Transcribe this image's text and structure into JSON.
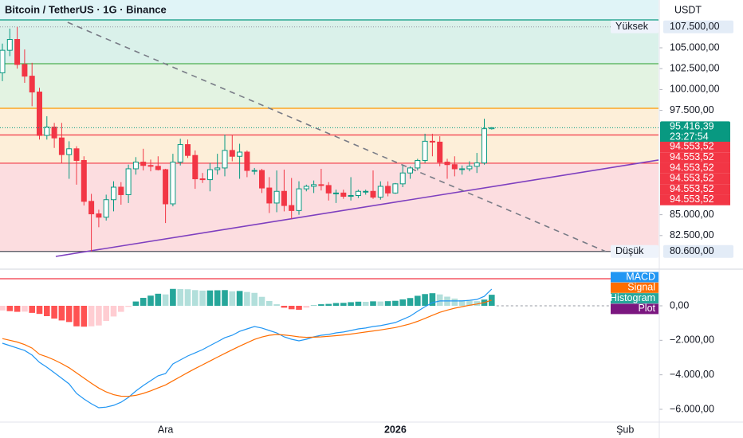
{
  "header": {
    "title": "Bitcoin / TetherUS · 1G · Binance",
    "currency": "USDT"
  },
  "chart_data": {
    "type": "candlestick",
    "categories": [
      null,
      null,
      null,
      null,
      null,
      null,
      null,
      null,
      null,
      null,
      null,
      null,
      null,
      null,
      null,
      null,
      null,
      null,
      null,
      null,
      null,
      null,
      "Ara",
      null,
      null,
      null,
      null,
      null,
      null,
      null,
      null,
      null,
      null,
      null,
      null,
      null,
      null,
      null,
      null,
      null,
      null,
      null,
      null,
      null,
      null,
      null,
      null,
      null,
      null,
      null,
      null,
      null,
      null,
      "2026",
      null,
      null,
      null,
      null,
      null,
      null,
      null,
      null,
      null,
      null,
      null,
      null,
      null,
      null,
      null,
      null,
      null,
      null,
      null,
      null,
      null,
      null,
      null,
      null,
      null,
      null,
      null,
      null,
      null,
      null,
      "Şub",
      null,
      null
    ],
    "open": [
      102000,
      104700,
      106000,
      103000,
      101600,
      99700,
      94500,
      95500,
      94200,
      92200,
      92900,
      91500,
      86600,
      85100,
      84700,
      86800,
      88300,
      87400,
      90500,
      91300,
      90900,
      90800,
      90400,
      86300,
      91300,
      93400,
      92100,
      89300,
      89200,
      90400,
      90600,
      92700,
      92000,
      92500,
      90300,
      90300,
      88200,
      86400,
      87800,
      86100,
      85500,
      88100,
      88400,
      88600,
      88500,
      87600,
      87600,
      87200,
      87300,
      87800,
      87800,
      87100,
      88400,
      87600,
      88700,
      90000,
      90600,
      91500,
      93800,
      93700,
      91300,
      91000,
      90500,
      90500,
      90800,
      91200,
      95300,
      null,
      null,
      null,
      null,
      null,
      null,
      null,
      null,
      null,
      null,
      null,
      null,
      null,
      null,
      null,
      null,
      null,
      null,
      null,
      null
    ],
    "high": [
      105500,
      107300,
      107500,
      104800,
      103200,
      100200,
      96800,
      96000,
      96000,
      93800,
      93200,
      92000,
      87500,
      85600,
      87400,
      89000,
      88900,
      91000,
      91900,
      92900,
      91600,
      92000,
      90500,
      92300,
      94100,
      94000,
      92700,
      90000,
      91200,
      92300,
      94600,
      94500,
      93500,
      92700,
      90600,
      90500,
      89500,
      90300,
      90400,
      89400,
      89000,
      88600,
      89100,
      90500,
      88900,
      88000,
      88000,
      89500,
      88000,
      88000,
      90300,
      89000,
      89000,
      88800,
      90900,
      90800,
      91700,
      94700,
      94700,
      94400,
      91700,
      92000,
      90900,
      91400,
      92400,
      96500,
      95500,
      null,
      null,
      null,
      null,
      null,
      null,
      null,
      null,
      null,
      null,
      null,
      null,
      null,
      null,
      null,
      null,
      null,
      null,
      null,
      null
    ],
    "low": [
      101000,
      104000,
      102500,
      100800,
      98000,
      94000,
      94000,
      93000,
      91200,
      89300,
      88600,
      86100,
      80600,
      83500,
      84300,
      85400,
      86200,
      86400,
      89800,
      90300,
      90200,
      90300,
      84000,
      86000,
      90900,
      91800,
      88100,
      88800,
      87800,
      89800,
      89600,
      91400,
      89300,
      89500,
      89800,
      87600,
      85200,
      85300,
      85400,
      84500,
      85000,
      87800,
      87600,
      87900,
      86700,
      86400,
      86900,
      86700,
      87000,
      87400,
      86900,
      86800,
      87200,
      87500,
      88300,
      89300,
      90300,
      91200,
      92000,
      90800,
      89300,
      89600,
      89800,
      90200,
      90000,
      91000,
      95200,
      null,
      null,
      null,
      null,
      null,
      null,
      null,
      null,
      null,
      null,
      null,
      null,
      null,
      null,
      null,
      null,
      null,
      null,
      null,
      null
    ],
    "close": [
      104700,
      106000,
      103000,
      101600,
      99700,
      94500,
      95500,
      94200,
      92200,
      92900,
      91500,
      86600,
      85100,
      84700,
      86800,
      88300,
      87400,
      90500,
      91300,
      90900,
      90800,
      90400,
      86300,
      91300,
      93400,
      92100,
      89300,
      89200,
      90400,
      90600,
      92700,
      92000,
      92500,
      90300,
      90300,
      88200,
      86400,
      87800,
      86100,
      85500,
      88100,
      88400,
      88600,
      88500,
      87600,
      87600,
      87200,
      87300,
      87800,
      87800,
      87100,
      88400,
      87600,
      88700,
      90000,
      90600,
      91500,
      93800,
      93700,
      91300,
      91000,
      90500,
      90500,
      90800,
      91200,
      95300,
      95416.39,
      null,
      null,
      null,
      null,
      null,
      null,
      null,
      null,
      null,
      null,
      null,
      null,
      null,
      null,
      null,
      null,
      null,
      null,
      null,
      null
    ],
    "colors": {
      "up": "#089981",
      "down": "#f23645"
    },
    "ylim": [
      78760,
      110725
    ],
    "yticks": [
      {
        "value": 82500,
        "label": "82.500,00"
      },
      {
        "value": 85000,
        "label": "85.000,00"
      },
      {
        "value": 97500,
        "label": "97.500,00"
      },
      {
        "value": 100000,
        "label": "100.000,00"
      },
      {
        "value": 102500,
        "label": "102.500,00"
      },
      {
        "value": 105000,
        "label": "105.000,00"
      }
    ],
    "zones": [
      {
        "from": 108340,
        "to": 110725,
        "color": "#e0f4f7"
      },
      {
        "from": 103090,
        "to": 108340,
        "color": "#daf1ea"
      },
      {
        "from": 97750,
        "to": 103090,
        "color": "#e3f3e2"
      },
      {
        "from": 91170,
        "to": 97750,
        "color": "#fdefd9"
      },
      {
        "from": 80600,
        "to": 91170,
        "color": "#fcdde0"
      }
    ],
    "levels": [
      {
        "value": 108340,
        "color": "#089981"
      },
      {
        "value": 103090,
        "color": "#4caf50"
      },
      {
        "value": 97750,
        "color": "#ff9800"
      },
      {
        "value": 94553.52,
        "color": "#f23645"
      },
      {
        "value": 91170,
        "color": "#f23645"
      }
    ],
    "trendlines": [
      {
        "x": [
          7.2,
          88.5
        ],
        "y": [
          80000,
          91550
        ],
        "color": "#7e3fbf",
        "dashed": false
      },
      {
        "x": [
          8.8,
          81.4
        ],
        "y": [
          108050,
          80580
        ],
        "color": "#787b86",
        "dashed": true
      }
    ],
    "high_marker": {
      "name": "Yüksek",
      "value": 107500,
      "label": "107.500,00"
    },
    "low_marker": {
      "name": "Düşük",
      "value": 80600,
      "label": "80.600,00"
    },
    "last_price": {
      "value": 95416.39,
      "label": "95.416,39",
      "countdown": "23:27:54",
      "color": "#089981"
    },
    "price_labels": [
      {
        "value": 94553.52,
        "label": "94.553,52"
      },
      {
        "value": 94553.52,
        "label": "94.553,52"
      },
      {
        "value": 94553.52,
        "label": "94.553,52"
      },
      {
        "value": 94553.52,
        "label": "94.553,52"
      },
      {
        "value": 94553.52,
        "label": "94.553,52"
      },
      {
        "value": 94553.52,
        "label": "94.553,52"
      }
    ],
    "macd": {
      "ylim": [
        -6740,
        1800
      ],
      "yticks": [
        {
          "value": 0,
          "label": "0,00"
        },
        {
          "value": -2000,
          "label": "−2.000,00"
        },
        {
          "value": -4000,
          "label": "−4.000,00"
        },
        {
          "value": -6000,
          "label": "−6.000,00"
        }
      ],
      "series": [
        {
          "name": "MACD",
          "color": "#2196f3",
          "values": [
            -2170,
            -2310,
            -2450,
            -2590,
            -2860,
            -3280,
            -3560,
            -3880,
            -4200,
            -4530,
            -5080,
            -5400,
            -5680,
            -5910,
            -5870,
            -5770,
            -5590,
            -5310,
            -4940,
            -4620,
            -4340,
            -4060,
            -3930,
            -3370,
            -3140,
            -2910,
            -2730,
            -2540,
            -2310,
            -2080,
            -1850,
            -1710,
            -1480,
            -1340,
            -1200,
            -1290,
            -1430,
            -1570,
            -1800,
            -1940,
            -2030,
            -1940,
            -1800,
            -1710,
            -1660,
            -1570,
            -1520,
            -1430,
            -1340,
            -1290,
            -1200,
            -1150,
            -1060,
            -970,
            -790,
            -600,
            -320,
            -50,
            180,
            280,
            280,
            280,
            280,
            320,
            370,
            550,
            970,
            null,
            null,
            null,
            null,
            null,
            null,
            null,
            null,
            null,
            null,
            null,
            null,
            null,
            null,
            null,
            null,
            null,
            null,
            null,
            null
          ]
        },
        {
          "name": "Signal",
          "color": "#ff6d00",
          "values": [
            -1900,
            -2000,
            -2100,
            -2250,
            -2450,
            -2810,
            -2960,
            -3140,
            -3350,
            -3590,
            -3890,
            -4190,
            -4490,
            -4770,
            -4990,
            -5150,
            -5240,
            -5250,
            -5190,
            -5080,
            -4930,
            -4760,
            -4590,
            -4350,
            -4110,
            -3870,
            -3640,
            -3420,
            -3200,
            -2980,
            -2760,
            -2550,
            -2340,
            -2140,
            -1950,
            -1810,
            -1710,
            -1660,
            -1690,
            -1740,
            -1800,
            -1830,
            -1820,
            -1800,
            -1770,
            -1730,
            -1690,
            -1640,
            -1580,
            -1520,
            -1460,
            -1400,
            -1330,
            -1260,
            -1160,
            -1050,
            -900,
            -730,
            -550,
            -380,
            -250,
            -140,
            -50,
            30,
            100,
            190,
            330,
            null,
            null,
            null,
            null,
            null,
            null,
            null,
            null,
            null,
            null,
            null,
            null,
            null,
            null,
            null,
            null,
            null,
            null,
            null,
            null
          ]
        }
      ],
      "histogram": {
        "name": "Histogram",
        "color": "#26a69a",
        "colors": {
          "up_rising": "#26a69a",
          "up_falling": "#b2dfdb",
          "down_falling": "#ff5252",
          "down_rising": "#ffcdd2"
        },
        "values": [
          -270,
          -310,
          -350,
          -340,
          -410,
          -470,
          -600,
          -740,
          -850,
          -940,
          -1190,
          -1210,
          -1190,
          -1140,
          -880,
          -620,
          -350,
          -60,
          250,
          460,
          590,
          700,
          660,
          980,
          970,
          960,
          910,
          880,
          890,
          900,
          910,
          840,
          860,
          800,
          750,
          520,
          280,
          90,
          -110,
          -200,
          -230,
          -110,
          20,
          90,
          110,
          160,
          170,
          210,
          240,
          230,
          260,
          250,
          270,
          290,
          370,
          450,
          580,
          680,
          730,
          660,
          530,
          420,
          330,
          290,
          270,
          360,
          640,
          null,
          null,
          null,
          null,
          null,
          null,
          null,
          null,
          null,
          null,
          null,
          null,
          null,
          null,
          null,
          null,
          null,
          null,
          null,
          null
        ]
      },
      "plot": {
        "name": "Plot",
        "value": 1570,
        "color": "#f23645",
        "label_color": "#7b1780"
      }
    }
  }
}
